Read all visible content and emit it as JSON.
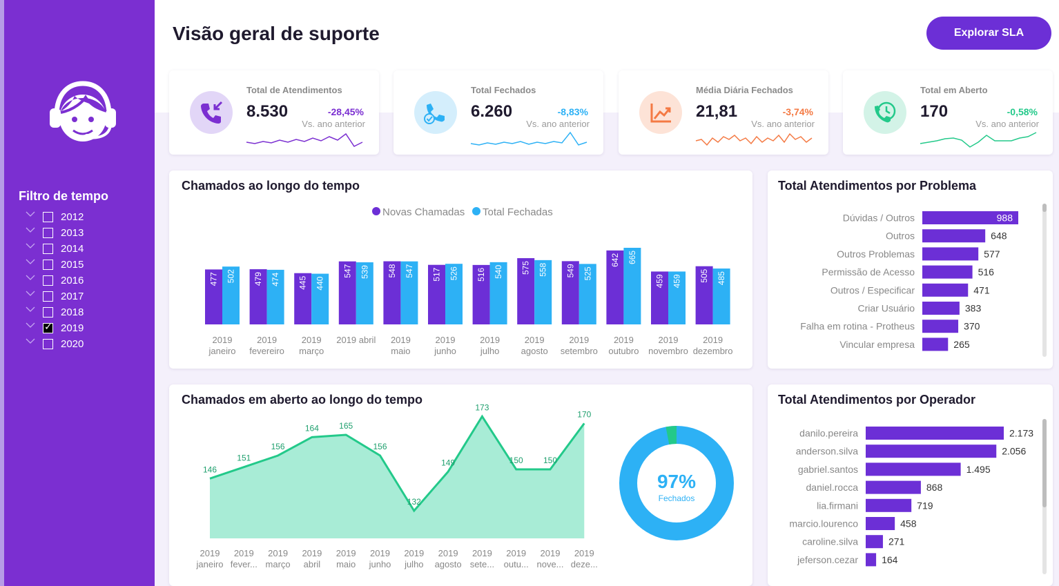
{
  "sidebar": {
    "logo_icon": "support-agent-icon",
    "filter_title": "Filtro de tempo",
    "years": [
      {
        "label": "2012",
        "checked": false
      },
      {
        "label": "2013",
        "checked": false
      },
      {
        "label": "2014",
        "checked": false
      },
      {
        "label": "2015",
        "checked": false
      },
      {
        "label": "2016",
        "checked": false
      },
      {
        "label": "2017",
        "checked": false
      },
      {
        "label": "2018",
        "checked": false
      },
      {
        "label": "2019",
        "checked": true
      },
      {
        "label": "2020",
        "checked": false
      }
    ]
  },
  "header": {
    "title": "Visão geral de suporte",
    "button_label": "Explorar SLA"
  },
  "colors": {
    "sidebar": "#7b2fd1",
    "purple": "#6c2fd6",
    "blue": "#2db1f5",
    "orange": "#f47a44",
    "green": "#23c98a",
    "area_fill": "#a8ecd6"
  },
  "kpis": [
    {
      "label": "Total de Atendimentos",
      "value": "8.530",
      "delta": "-28,45%",
      "sub": "Vs. ano anterior",
      "icon": "incoming-call-icon",
      "color": "#7b2fd1",
      "icon_bg": "#e2d6f7"
    },
    {
      "label": "Total Fechados",
      "value": "6.260",
      "delta": "-8,83%",
      "sub": "Vs. ano anterior",
      "icon": "support-check-icon",
      "color": "#2db1f5",
      "icon_bg": "#d4eefc"
    },
    {
      "label": "Média Diária Fechados",
      "value": "21,81",
      "delta": "-3,74%",
      "sub": "Vs. ano anterior",
      "icon": "trend-chart-icon",
      "color": "#f47a44",
      "icon_bg": "#fde3d7"
    },
    {
      "label": "Total em Aberto",
      "value": "170",
      "delta": "-0,58%",
      "sub": "Vs. ano anterior",
      "icon": "clock-phone-icon",
      "color": "#23c98a",
      "icon_bg": "#d3f3e7"
    }
  ],
  "panels": {
    "chamados_tempo": "Chamados ao longo do tempo",
    "chamados_aberto": "Chamados em aberto ao longo do tempo",
    "por_problema": "Total Atendimentos por Problema",
    "por_operador": "Total Atendimentos por Operador"
  },
  "donut": {
    "pct": "97%",
    "label": "Fechados",
    "closed_fraction": 0.97
  },
  "chart_data": [
    {
      "type": "bar",
      "title": "Chamados ao longo do tempo",
      "legend_position": "top",
      "categories": [
        [
          "2019",
          "janeiro"
        ],
        [
          "2019",
          "fevereiro"
        ],
        [
          "2019",
          "março"
        ],
        [
          "2019 abril"
        ],
        [
          "2019",
          "maio"
        ],
        [
          "2019",
          "junho"
        ],
        [
          "2019",
          "julho"
        ],
        [
          "2019",
          "agosto"
        ],
        [
          "2019",
          "setembro"
        ],
        [
          "2019",
          "outubro"
        ],
        [
          "2019",
          "novembro"
        ],
        [
          "2019",
          "dezembro"
        ]
      ],
      "series": [
        {
          "name": "Novas Chamadas",
          "color": "#6c2fd6",
          "values": [
            477,
            479,
            445,
            547,
            548,
            517,
            516,
            575,
            549,
            642,
            459,
            505
          ]
        },
        {
          "name": "Total Fechadas",
          "color": "#2db1f5",
          "values": [
            502,
            474,
            440,
            539,
            547,
            526,
            540,
            558,
            525,
            665,
            459,
            485
          ]
        }
      ]
    },
    {
      "type": "area",
      "title": "Chamados em aberto ao longo do tempo",
      "categories": [
        [
          "2019",
          "janeiro"
        ],
        [
          "2019",
          "fever..."
        ],
        [
          "2019",
          "março"
        ],
        [
          "2019",
          "abril"
        ],
        [
          "2019",
          "maio"
        ],
        [
          "2019",
          "junho"
        ],
        [
          "2019",
          "julho"
        ],
        [
          "2019",
          "agosto"
        ],
        [
          "2019",
          "sete..."
        ],
        [
          "2019",
          "outu..."
        ],
        [
          "2019",
          "nove..."
        ],
        [
          "2019",
          "deze..."
        ]
      ],
      "values": [
        146,
        151,
        156,
        164,
        165,
        156,
        132,
        149,
        173,
        150,
        150,
        170
      ]
    },
    {
      "type": "bar",
      "orientation": "horizontal",
      "title": "Total Atendimentos por Problema",
      "categories": [
        "Dúvidas / Outros",
        "Outros",
        "Outros Problemas",
        "Permissão de Acesso",
        "Outros / Especificar",
        "Criar Usuário",
        "Falha em rotina - Protheus",
        "Vincular empresa"
      ],
      "values": [
        988,
        648,
        577,
        516,
        471,
        383,
        370,
        265
      ],
      "labels": [
        "988",
        "648",
        "577",
        "516",
        "471",
        "383",
        "370",
        "265"
      ]
    },
    {
      "type": "bar",
      "orientation": "horizontal",
      "title": "Total Atendimentos por Operador",
      "categories": [
        "danilo.pereira",
        "anderson.silva",
        "gabriel.santos",
        "daniel.rocca",
        "lia.firmani",
        "marcio.lourenco",
        "caroline.silva",
        "jeferson.cezar"
      ],
      "values": [
        2173,
        2056,
        1495,
        868,
        719,
        458,
        271,
        164
      ],
      "labels": [
        "2.173",
        "2.056",
        "1.495",
        "868",
        "719",
        "458",
        "271",
        "164"
      ]
    }
  ]
}
